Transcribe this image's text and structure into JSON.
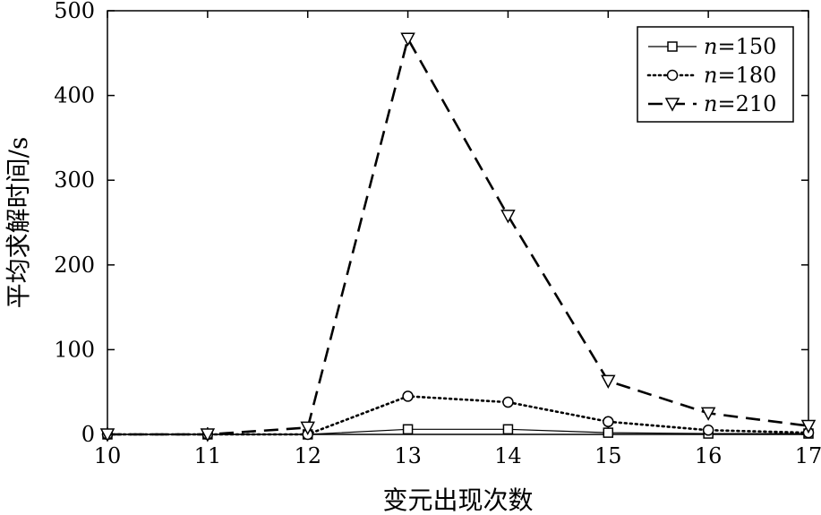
{
  "chart_data": {
    "type": "line",
    "title": "",
    "xlabel": "变元出现次数",
    "ylabel": "平均求解时间/s",
    "x": [
      10,
      11,
      12,
      13,
      14,
      15,
      16,
      17
    ],
    "xlim": [
      10,
      17
    ],
    "ylim": [
      0,
      500
    ],
    "xticks": [
      10,
      11,
      12,
      13,
      14,
      15,
      16,
      17
    ],
    "yticks": [
      0,
      100,
      200,
      300,
      400,
      500
    ],
    "grid": false,
    "legend_position": "top-right",
    "series": [
      {
        "name": "n=150",
        "name_var": "n",
        "name_rest": "=150",
        "marker": "square",
        "line": "solid",
        "values": [
          0,
          0,
          0,
          6,
          6,
          2,
          1,
          1
        ]
      },
      {
        "name": "n=180",
        "name_var": "n",
        "name_rest": "=180",
        "marker": "circle",
        "line": "dotted",
        "values": [
          0,
          0,
          0,
          45,
          38,
          15,
          5,
          2
        ]
      },
      {
        "name": "n=210",
        "name_var": "n",
        "name_rest": "=210",
        "marker": "triangle-down",
        "line": "dashed",
        "values": [
          0,
          0,
          8,
          467,
          258,
          63,
          25,
          10
        ]
      }
    ]
  }
}
